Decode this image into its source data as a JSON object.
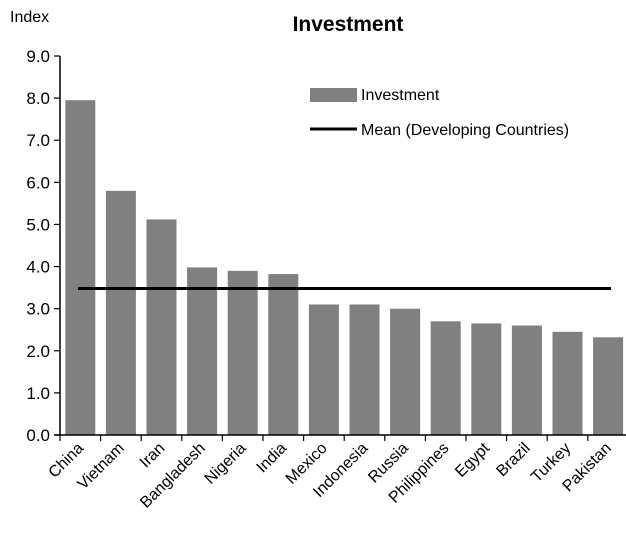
{
  "chart_data": {
    "type": "bar",
    "title": "Investment",
    "ylabel": "Index",
    "xlabel": "",
    "ylim": [
      0,
      9
    ],
    "yticks": [
      "0.0",
      "1.0",
      "2.0",
      "3.0",
      "4.0",
      "5.0",
      "6.0",
      "7.0",
      "8.0",
      "9.0"
    ],
    "grid": false,
    "legend_position": "top-right",
    "categories": [
      "China",
      "Vietnam",
      "Iran",
      "Bangladesh",
      "Nigeria",
      "India",
      "Mexico",
      "Indonesia",
      "Russia",
      "Philippines",
      "Egypt",
      "Brazil",
      "Turkey",
      "Pakistan"
    ],
    "series": [
      {
        "name": "Investment",
        "type": "bar",
        "color": "#808080",
        "values": [
          7.95,
          5.8,
          5.12,
          3.98,
          3.9,
          3.82,
          3.1,
          3.1,
          3.0,
          2.7,
          2.65,
          2.6,
          2.45,
          2.32
        ]
      },
      {
        "name": "Mean (Developing Countries)",
        "type": "line",
        "color": "#000000",
        "value": 3.48
      }
    ]
  }
}
